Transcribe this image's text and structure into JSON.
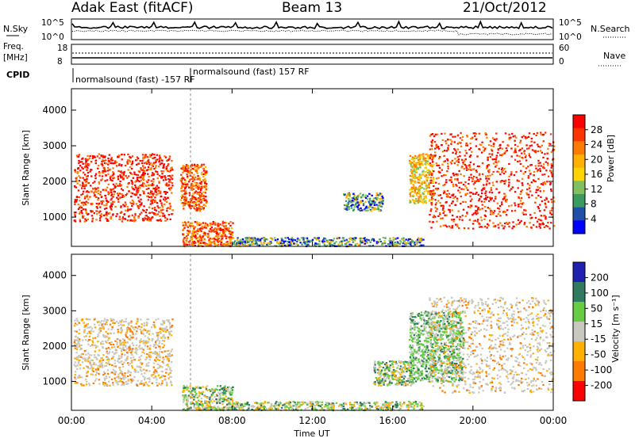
{
  "header": {
    "site": "Adak East (fitACF)",
    "beam": "Beam 13",
    "date": "21/Oct/2012"
  },
  "top_panels": {
    "nsky_label": "N.Sky",
    "nsky_ticks": [
      "10^5",
      "10^0"
    ],
    "nsearch_label": "N.Search",
    "nsearch_ticks": [
      "10^5",
      "10^0"
    ],
    "freq_label": [
      "Freq.",
      "[MHz]"
    ],
    "freq_ticks": [
      "18",
      "8"
    ],
    "nave_label": "Nave",
    "nave_ticks": [
      "60",
      "0"
    ],
    "cpid_label": "CPID",
    "cpid_segments": [
      "normalsound (fast) -157 RF",
      "normalsound (fast) 157 RF"
    ]
  },
  "power_colorbar": {
    "title": "Power [dB]",
    "ticks": [
      "28",
      "24",
      "20",
      "16",
      "12",
      "8",
      "4"
    ],
    "colors": [
      "#ff0000",
      "#ff3300",
      "#ff7a00",
      "#ffb000",
      "#ffd400",
      "#80c060",
      "#3a9a60",
      "#1f4fa8",
      "#0000ff"
    ]
  },
  "velocity_colorbar": {
    "title": "Velocity [m s⁻¹]",
    "ticks": [
      "200",
      "100",
      "50",
      "15",
      "-15",
      "-50",
      "-100",
      "-200"
    ],
    "colors": [
      "#2020b0",
      "#2f7a60",
      "#66cc44",
      "#c8c8c0",
      "#ffb000",
      "#ff7a00",
      "#ff0000"
    ]
  },
  "chart_data": [
    {
      "type": "heatmap",
      "name": "power",
      "ylabel": "Slant Range [km]",
      "xlabel": "",
      "x_ticks": [
        "00:00",
        "04:00",
        "08:00",
        "12:00",
        "16:00",
        "20:00",
        "00:00"
      ],
      "y_ticks": [
        1000,
        2000,
        3000,
        4000
      ],
      "xlim_hours": [
        0,
        24
      ],
      "ylim_km": [
        180,
        4600
      ],
      "colorbar_label": "Power [dB]",
      "echo_regions": [
        {
          "t": [
            0.1,
            5.0
          ],
          "range_km": [
            900,
            2800
          ],
          "value_db": 28
        },
        {
          "t": [
            5.4,
            6.7
          ],
          "range_km": [
            1200,
            2500
          ],
          "value_db": 22
        },
        {
          "t": [
            5.5,
            8.0
          ],
          "range_km": [
            200,
            900
          ],
          "value_db": 20
        },
        {
          "t": [
            8.0,
            17.5
          ],
          "range_km": [
            200,
            450
          ],
          "value_db": 12
        },
        {
          "t": [
            13.5,
            15.5
          ],
          "range_km": [
            1200,
            1700
          ],
          "value_db": 10
        },
        {
          "t": [
            16.8,
            18.0
          ],
          "range_km": [
            1400,
            2800
          ],
          "value_db": 16
        },
        {
          "t": [
            17.8,
            24.0
          ],
          "range_km": [
            700,
            3400
          ],
          "value_db": 28
        }
      ]
    },
    {
      "type": "heatmap",
      "name": "velocity",
      "ylabel": "Slant Range [km]",
      "xlabel": "Time UT",
      "x_ticks": [
        "00:00",
        "04:00",
        "08:00",
        "12:00",
        "16:00",
        "20:00",
        "00:00"
      ],
      "y_ticks": [
        1000,
        2000,
        3000,
        4000
      ],
      "xlim_hours": [
        0,
        24
      ],
      "ylim_km": [
        180,
        4600
      ],
      "colorbar_label": "Velocity [m s⁻¹]",
      "echo_regions": [
        {
          "t": [
            0.1,
            5.0
          ],
          "range_km": [
            900,
            2800
          ],
          "value_ms": 0
        },
        {
          "t": [
            5.5,
            8.0
          ],
          "range_km": [
            200,
            900
          ],
          "value_ms": 40
        },
        {
          "t": [
            8.0,
            17.5
          ],
          "range_km": [
            200,
            450
          ],
          "value_ms": 25
        },
        {
          "t": [
            15.0,
            17.0
          ],
          "range_km": [
            900,
            1600
          ],
          "value_ms": 40
        },
        {
          "t": [
            16.8,
            19.5
          ],
          "range_km": [
            1000,
            3000
          ],
          "value_ms": 60
        },
        {
          "t": [
            17.8,
            24.0
          ],
          "range_km": [
            700,
            3400
          ],
          "value_ms": -10
        }
      ]
    }
  ]
}
